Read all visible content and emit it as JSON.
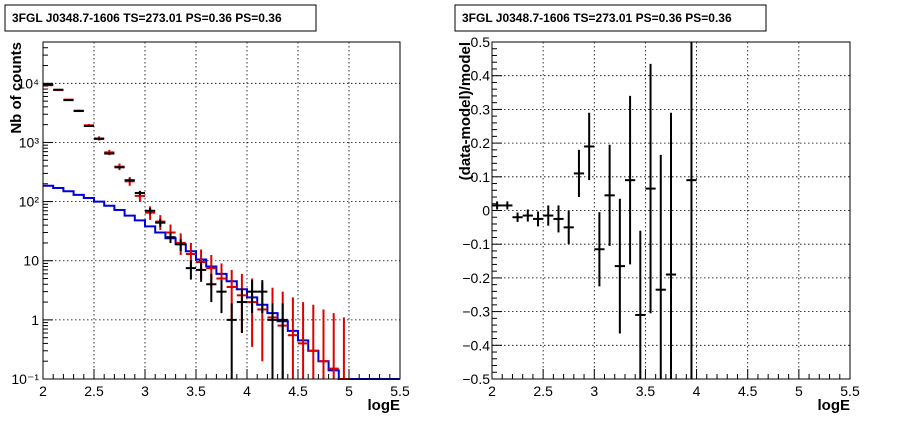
{
  "chart_data": [
    {
      "type": "line",
      "title": "3FGL J0348.7-1606 TS=273.01 PS=0.36 PS=0.36",
      "xlabel": "logE",
      "ylabel": "Nb of counts",
      "xlim": [
        2,
        5.5
      ],
      "ylim": [
        0.1,
        50000
      ],
      "yscale": "log",
      "xticks": [
        "2",
        "2.5",
        "3",
        "3.5",
        "4",
        "4.5",
        "5",
        "5.5"
      ],
      "yticks": [
        "10⁻¹",
        "1",
        "10",
        "10²",
        "10³",
        "10⁴"
      ],
      "yticks_values": [
        0.1,
        1,
        10,
        100,
        1000,
        10000
      ],
      "grid": true,
      "colors": {
        "model": "#0000dd",
        "data": "#000000",
        "prediction": "#dd0000"
      },
      "x_edges": [
        2.0,
        2.1,
        2.2,
        2.3,
        2.4,
        2.5,
        2.6,
        2.7,
        2.8,
        2.9,
        3.0,
        3.1,
        3.2,
        3.3,
        3.4,
        3.5,
        3.6,
        3.7,
        3.8,
        3.9,
        4.0,
        4.1,
        4.2,
        4.3,
        4.4,
        4.5,
        4.6,
        4.7,
        4.8,
        4.9,
        5.0,
        5.1,
        5.2,
        5.3,
        5.4,
        5.5
      ],
      "series": [
        {
          "kind": "step",
          "values": [
            185,
            170,
            150,
            130,
            115,
            100,
            85,
            72,
            58,
            48,
            38,
            30,
            24,
            19,
            14.5,
            10.5,
            8,
            6,
            4.5,
            3.3,
            2.4,
            1.8,
            1.3,
            0.95,
            0.65,
            0.45,
            0.3,
            0.2,
            0.14,
            0.1,
            0.1,
            0.1,
            0.1,
            0.1,
            0.1
          ]
        },
        {
          "kind": "data",
          "x": [
            2.05,
            2.15,
            2.25,
            2.35,
            2.45,
            2.55,
            2.65,
            2.75,
            2.85,
            2.95,
            3.05,
            3.15,
            3.25,
            3.35,
            3.45,
            3.55,
            3.65,
            3.75,
            3.85,
            3.95,
            4.05,
            4.15,
            4.25,
            4.35
          ],
          "y": [
            9500,
            7800,
            5200,
            3400,
            1900,
            1150,
            650,
            380,
            230,
            140,
            70,
            44,
            25,
            19,
            7.5,
            7,
            4,
            3,
            1,
            2,
            3,
            3,
            1,
            1
          ],
          "yerr": [
            100,
            90,
            75,
            60,
            45,
            35,
            26,
            20,
            15,
            12,
            8.5,
            6.6,
            5,
            4.4,
            2.7,
            2.6,
            2,
            1.7,
            0.9,
            1.4,
            1.7,
            1.7,
            0.9,
            0.9
          ]
        },
        {
          "kind": "errorbar",
          "x": [
            2.05,
            2.15,
            2.25,
            2.35,
            2.45,
            2.55,
            2.65,
            2.75,
            2.85,
            2.95,
            3.05,
            3.15,
            3.25,
            3.35,
            3.45,
            3.55,
            3.65,
            3.75,
            3.85,
            3.95,
            4.05,
            4.15,
            4.25,
            4.35,
            4.45,
            4.55,
            4.65,
            4.75,
            4.85,
            4.95
          ],
          "y": [
            9300,
            7700,
            5300,
            3450,
            1950,
            1170,
            680,
            390,
            220,
            125,
            65,
            46,
            30,
            20,
            13,
            9.5,
            7.5,
            5,
            3.6,
            2.6,
            2,
            1.5,
            1.1,
            0.8,
            0.55,
            0.4,
            0.3,
            0.2,
            0.15,
            0.1
          ],
          "ylow": [
            9150,
            7550,
            5150,
            3300,
            1850,
            1080,
            610,
            340,
            185,
            100,
            49,
            33,
            20,
            12.5,
            7.5,
            5,
            3.5,
            2,
            1,
            0.6,
            0.35,
            0.2,
            0.13,
            0.1,
            0.1,
            0.1,
            0.1,
            0.1,
            0.1,
            0.1
          ],
          "yhigh": [
            9450,
            7850,
            5450,
            3600,
            2050,
            1270,
            750,
            440,
            260,
            150,
            83,
            59,
            41,
            29,
            20,
            15.5,
            12.5,
            9,
            7,
            6,
            5,
            4.2,
            3.5,
            3,
            2.4,
            2,
            1.8,
            1.5,
            1.3,
            1.1
          ]
        }
      ]
    },
    {
      "type": "scatter",
      "title": "3FGL J0348.7-1606 TS=273.01 PS=0.36 PS=0.36",
      "xlabel": "logE",
      "ylabel": "(data-model)/model",
      "xlim": [
        2,
        5.5
      ],
      "ylim": [
        -0.5,
        0.5
      ],
      "xticks": [
        "2",
        "2.5",
        "3",
        "3.5",
        "4",
        "4.5",
        "5",
        "5.5"
      ],
      "yticks": [
        "−0.5",
        "−0.4",
        "−0.3",
        "−0.2",
        "−0.1",
        "0",
        "0.1",
        "0.2",
        "0.3",
        "0.4",
        "0.5"
      ],
      "grid": true,
      "series": [
        {
          "x": [
            2.05,
            2.15,
            2.25,
            2.35,
            2.45,
            2.55,
            2.65,
            2.75,
            2.85,
            2.95,
            3.05,
            3.15,
            3.25,
            3.35,
            3.45,
            3.55,
            3.65,
            3.75,
            3.95
          ],
          "y": [
            0.015,
            0.015,
            -0.02,
            -0.015,
            -0.025,
            -0.015,
            -0.025,
            -0.05,
            0.11,
            0.19,
            -0.115,
            0.045,
            -0.165,
            0.09,
            -0.31,
            0.065,
            -0.235,
            -0.19,
            0.09
          ],
          "yerr": [
            0.012,
            0.012,
            0.014,
            0.018,
            0.022,
            0.03,
            0.04,
            0.05,
            0.07,
            0.1,
            0.11,
            0.15,
            0.2,
            0.25,
            0.25,
            0.37,
            0.4,
            0.48,
            0.6
          ]
        }
      ]
    }
  ]
}
